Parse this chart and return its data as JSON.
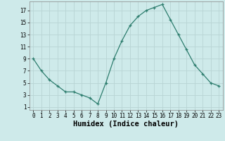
{
  "x": [
    0,
    1,
    2,
    3,
    4,
    5,
    6,
    7,
    8,
    9,
    10,
    11,
    12,
    13,
    14,
    15,
    16,
    17,
    18,
    19,
    20,
    21,
    22,
    23
  ],
  "y": [
    9,
    7,
    5.5,
    4.5,
    3.5,
    3.5,
    3,
    2.5,
    1.5,
    5,
    9,
    12,
    14.5,
    16,
    17,
    17.5,
    18,
    15.5,
    13,
    10.5,
    8,
    6.5,
    5,
    4.5
  ],
  "line_color": "#2d7d6e",
  "marker": "+",
  "bg_color": "#ceeaea",
  "grid_color": "#b8d4d4",
  "xlabel": "Humidex (Indice chaleur)",
  "xlim": [
    -0.5,
    23.5
  ],
  "ylim": [
    0.5,
    18.5
  ],
  "yticks": [
    1,
    3,
    5,
    7,
    9,
    11,
    13,
    15,
    17
  ],
  "xticks": [
    0,
    1,
    2,
    3,
    4,
    5,
    6,
    7,
    8,
    9,
    10,
    11,
    12,
    13,
    14,
    15,
    16,
    17,
    18,
    19,
    20,
    21,
    22,
    23
  ],
  "tick_fontsize": 5.5,
  "xlabel_fontsize": 7.5
}
